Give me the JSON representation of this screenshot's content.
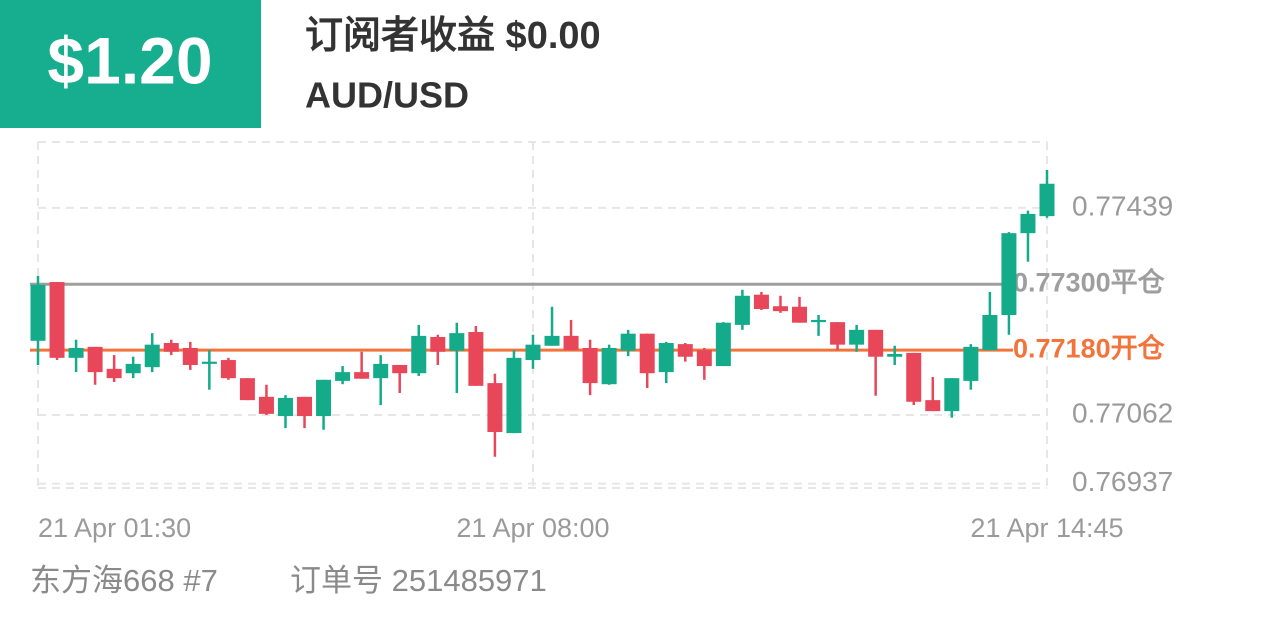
{
  "header": {
    "profit": "$1.20",
    "title": "订阅者收益 $0.00",
    "symbol": "AUD/USD"
  },
  "footer": {
    "trader": "东方海668 #7",
    "order": "订单号 251485971"
  },
  "chart_data": {
    "type": "candlestick",
    "categories": [
      "21 Apr 01:30",
      null,
      null,
      null,
      null,
      null,
      null,
      null,
      null,
      null,
      null,
      null,
      null,
      null,
      null,
      null,
      null,
      null,
      null,
      null,
      null,
      null,
      null,
      null,
      null,
      null,
      "21 Apr 08:00",
      null,
      null,
      null,
      null,
      null,
      null,
      null,
      null,
      null,
      null,
      null,
      null,
      null,
      null,
      null,
      null,
      null,
      null,
      null,
      null,
      null,
      null,
      null,
      null,
      null,
      null,
      "21 Apr 14:45"
    ],
    "open": [
      0.77197,
      0.77304,
      0.77166,
      0.77186,
      0.77146,
      0.77138,
      0.77149,
      0.77193,
      0.77184,
      0.77155,
      0.77162,
      0.77129,
      0.77095,
      0.7706,
      0.77095,
      0.7706,
      0.77124,
      0.7714,
      0.77129,
      0.77153,
      0.77138,
      0.77204,
      0.77179,
      0.77213,
      0.7712,
      0.77029,
      0.77162,
      0.77188,
      0.77206,
      0.77184,
      0.77118,
      0.77179,
      0.7721,
      0.7714,
      0.77191,
      0.7718,
      0.77151,
      0.77226,
      0.77281,
      0.7726,
      0.77259,
      0.77231,
      0.77231,
      0.7719,
      0.77217,
      0.77168,
      0.77175,
      0.77089,
      0.77069,
      0.77124,
      0.7718,
      0.77244,
      0.77393,
      0.77424
    ],
    "high": [
      0.77315,
      0.77304,
      0.77199,
      0.77186,
      0.77171,
      0.77168,
      0.77211,
      0.77199,
      0.77195,
      0.7718,
      0.77166,
      0.77129,
      0.77117,
      0.77098,
      0.77095,
      0.77126,
      0.77151,
      0.77177,
      0.77171,
      0.77153,
      0.77226,
      0.77208,
      0.7723,
      0.77224,
      0.77137,
      0.7718,
      0.77208,
      0.77259,
      0.77235,
      0.77199,
      0.7719,
      0.77217,
      0.7721,
      0.77195,
      0.77193,
      0.77184,
      0.77231,
      0.7729,
      0.77286,
      0.77279,
      0.77277,
      0.77244,
      0.77231,
      0.77226,
      0.77217,
      0.77188,
      0.77175,
      0.77131,
      0.77129,
      0.77191,
      0.77286,
      0.77395,
      0.77434,
      0.77508
    ],
    "low": [
      0.77153,
      0.77162,
      0.7714,
      0.77117,
      0.77122,
      0.77129,
      0.7714,
      0.77171,
      0.77144,
      0.77108,
      0.77126,
      0.77089,
      0.77062,
      0.77038,
      0.77038,
      0.77035,
      0.77118,
      0.77128,
      0.7708,
      0.77102,
      0.77133,
      0.77153,
      0.77102,
      0.77115,
      0.76986,
      0.77029,
      0.77146,
      0.77188,
      0.7718,
      0.77098,
      0.77117,
      0.77169,
      0.77111,
      0.7712,
      0.77159,
      0.77126,
      0.77151,
      0.77217,
      0.77253,
      0.77248,
      0.7723,
      0.77206,
      0.7718,
      0.77177,
      0.77097,
      0.77153,
      0.7708,
      0.77069,
      0.77057,
      0.77108,
      0.7718,
      0.77208,
      0.77341,
      0.77421
    ],
    "close": [
      0.77299,
      0.77166,
      0.77184,
      0.7714,
      0.77129,
      0.77155,
      0.7719,
      0.77177,
      0.77153,
      0.77159,
      0.77129,
      0.77089,
      0.77064,
      0.77093,
      0.7706,
      0.77126,
      0.7714,
      0.77128,
      0.77155,
      0.77138,
      0.77206,
      0.77177,
      0.77211,
      0.77115,
      0.77031,
      0.77166,
      0.7719,
      0.77206,
      0.7718,
      0.7712,
      0.77184,
      0.7721,
      0.77138,
      0.77193,
      0.77168,
      0.77151,
      0.7723,
      0.77279,
      0.77255,
      0.77251,
      0.7723,
      0.77235,
      0.7719,
      0.77217,
      0.77168,
      0.77173,
      0.77086,
      0.77069,
      0.77129,
      0.77186,
      0.77244,
      0.77393,
      0.77428,
      0.77483
    ],
    "up_color": "#14ab8b",
    "down_color": "#e8475a",
    "ylim": [
      0.76929,
      0.77559
    ],
    "yticks": [
      0.77439,
      0.77062,
      0.76937
    ],
    "grid": true,
    "reference_lines": [
      {
        "value": 0.773,
        "label": "0.77300平仓",
        "color": "#9e9e9e"
      },
      {
        "value": 0.7718,
        "label": "0.77180开仓",
        "color": "#f2743b"
      }
    ]
  }
}
